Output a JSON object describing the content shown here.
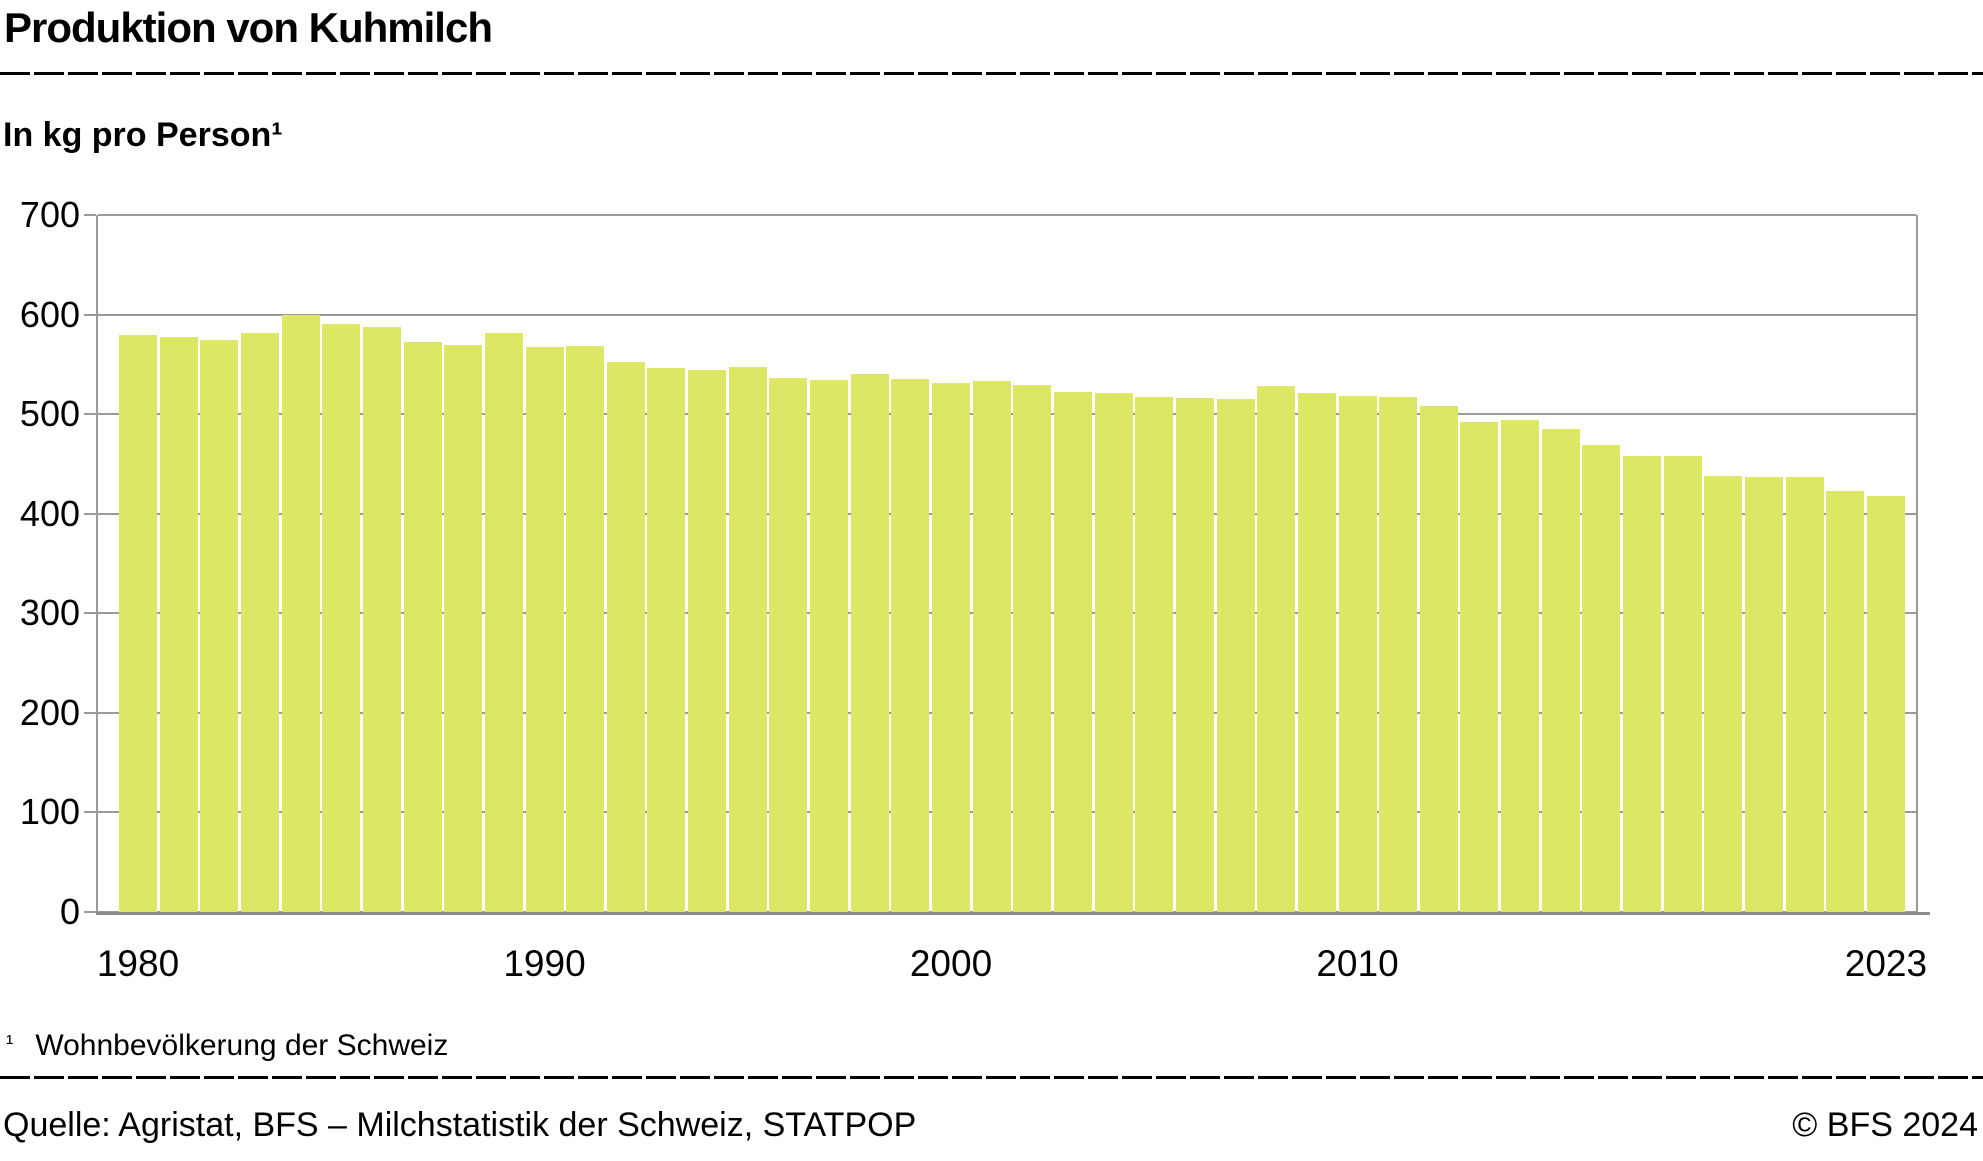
{
  "header": {
    "title": "Produktion von Kuhmilch",
    "subtitle": "In kg pro Person¹"
  },
  "chart_data": {
    "type": "bar",
    "title": "Produktion von Kuhmilch",
    "ylabel": "In kg pro Person",
    "xlabel": "",
    "x": [
      1980,
      1981,
      1982,
      1983,
      1984,
      1985,
      1986,
      1987,
      1988,
      1989,
      1990,
      1991,
      1992,
      1993,
      1994,
      1995,
      1996,
      1997,
      1998,
      1999,
      2000,
      2001,
      2002,
      2003,
      2004,
      2005,
      2006,
      2007,
      2008,
      2009,
      2010,
      2011,
      2012,
      2013,
      2014,
      2015,
      2016,
      2017,
      2018,
      2019,
      2020,
      2021,
      2022,
      2023
    ],
    "values": [
      579,
      577,
      574,
      582,
      600,
      591,
      588,
      572,
      569,
      582,
      567,
      568,
      552,
      546,
      544,
      547,
      536,
      534,
      540,
      535,
      531,
      533,
      529,
      522,
      521,
      517,
      516,
      515,
      528,
      521,
      518,
      517,
      508,
      492,
      494,
      485,
      469,
      458,
      458,
      438,
      437,
      437,
      423,
      418
    ],
    "ylim": [
      0,
      700
    ],
    "yticks": [
      0,
      100,
      200,
      300,
      400,
      500,
      600,
      700
    ],
    "xtick_labels": [
      "1980",
      "1990",
      "2000",
      "2010",
      "2023"
    ],
    "grid": true,
    "legend": false,
    "bar_color": "#dde766",
    "grid_color": "#9a9a9a",
    "axis_color": "#8c8c8c"
  },
  "footnote": {
    "marker": "¹",
    "text": "Wohnbevölkerung der Schweiz"
  },
  "footer": {
    "source": "Quelle: Agristat, BFS – Milchstatistik der Schweiz, STATPOP",
    "copyright": "© BFS 2024"
  }
}
